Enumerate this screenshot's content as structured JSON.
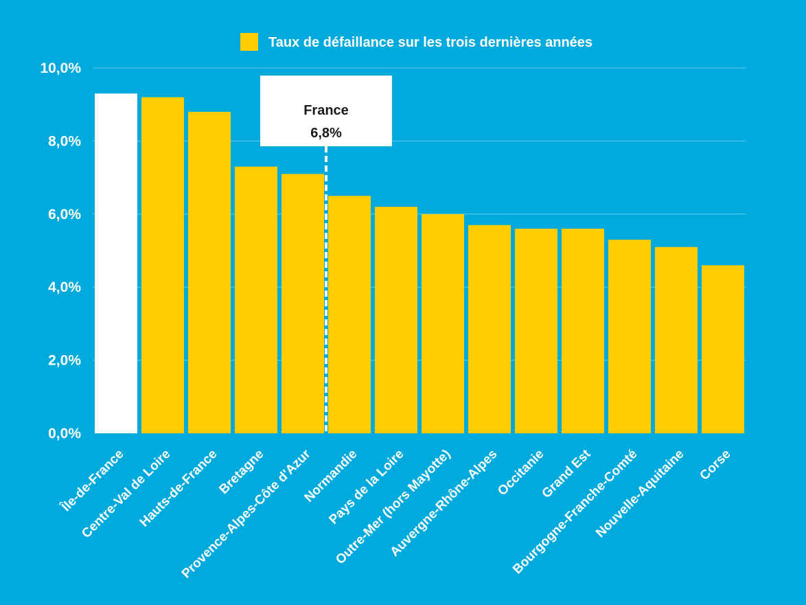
{
  "chart_data": {
    "type": "bar",
    "legend": {
      "label": "Taux de défaillance sur les trois dernières années",
      "position": "top-center"
    },
    "categories": [
      "Île-de-France",
      "Centre-Val de Loire",
      "Hauts-de-France",
      "Bretagne",
      "Provence-Alpes-Côte d'Azur",
      "Normandie",
      "Pays de la Loire",
      "Outre-Mer (hors Mayotte)",
      "Auvergne-Rhône-Alpes",
      "Occitanie",
      "Grand Est",
      "Bourgogne-Franche-Comté",
      "Nouvelle-Aquitaine",
      "Corse"
    ],
    "series": [
      {
        "name": "Taux de défaillance sur les trois dernières années",
        "values": [
          9.3,
          9.2,
          8.8,
          7.3,
          7.1,
          6.5,
          6.2,
          6.0,
          5.7,
          5.6,
          5.6,
          5.3,
          5.1,
          4.6
        ]
      }
    ],
    "highlight_category": "Île-de-France",
    "y_ticks": [
      "0,0%",
      "2,0%",
      "4,0%",
      "6,0%",
      "8,0%",
      "10,0%"
    ],
    "ylim": [
      0,
      10
    ],
    "grid": true,
    "reference": {
      "label": "France",
      "value_label": "6,8%",
      "value": 6.8
    },
    "colors": {
      "background": "#00aadc",
      "bar": "#ffcc00",
      "highlight_bar": "#ffffff",
      "gridline": "#5fcdea",
      "reference_box": "#ffffff",
      "reference_text": "#1a1a1a"
    }
  }
}
